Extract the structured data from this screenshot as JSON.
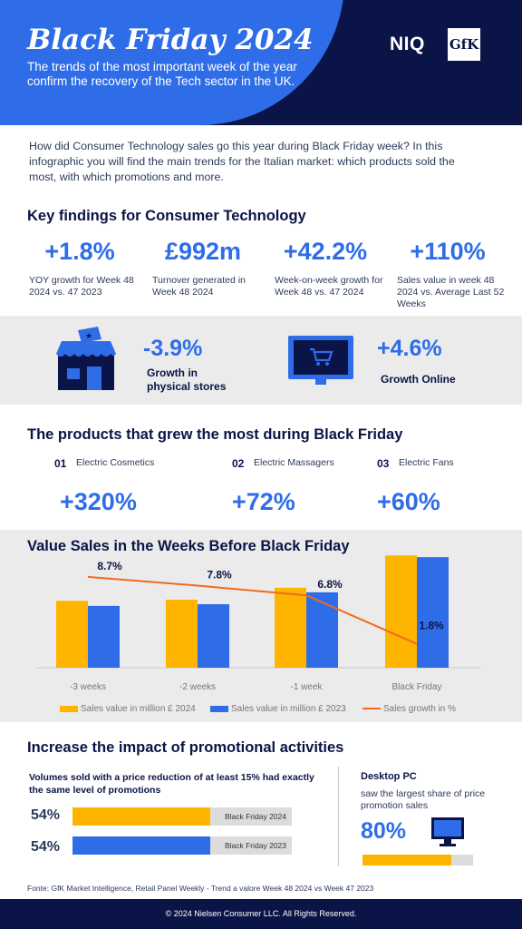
{
  "header": {
    "title": "Black Friday 2024",
    "subtitle": "The trends of the most important week of the year confirm the recovery of the Tech sector in the UK.",
    "logo_niq": "NIQ",
    "logo_gfk": "GfK"
  },
  "intro": "How did Consumer Technology sales go this year during Black Friday week? In this infographic you will find the main trends for the Italian market: which products sold the most, with which promotions and more.",
  "key_findings": {
    "title": "Key findings for Consumer Technology",
    "items": [
      {
        "value": "+1.8%",
        "desc": "YOY growth for Week 48 2024 vs. 47 2023"
      },
      {
        "value": "£992m",
        "desc": "Turnover generated in Week 48 2024"
      },
      {
        "value": "+42.2%",
        "desc": "Week-on-week growth for Week 48 vs. 47 2024"
      },
      {
        "value": "+110%",
        "desc": "Sales value in week 48 2024 vs. Average Last 52 Weeks"
      }
    ],
    "stores": {
      "value": "-3.9%",
      "label": "Growth in physical stores",
      "icon": "store-icon"
    },
    "online": {
      "value": "+4.6%",
      "label": "Growth Online",
      "icon": "monitor-cart-icon"
    }
  },
  "products": {
    "title": "The products that grew the most during Black Friday",
    "items": [
      {
        "num": "01",
        "name": "Electric Cosmetics",
        "value": "+320%"
      },
      {
        "num": "02",
        "name": "Electric Massagers",
        "value": "+72%"
      },
      {
        "num": "03",
        "name": "Electric Fans",
        "value": "+60%"
      }
    ]
  },
  "chart_data": {
    "type": "bar",
    "title": "Value Sales in the Weeks Before Black Friday",
    "categories": [
      "-3 weeks",
      "-2 weeks",
      "-1 week",
      "Black Friday"
    ],
    "series": [
      {
        "name": "Sales value in million £ 2024",
        "type": "bar",
        "color": "#ffb400",
        "values": [
          590,
          600,
          705,
          990
        ]
      },
      {
        "name": "Sales value in million £ 2023",
        "type": "bar",
        "color": "#2f6de8",
        "values": [
          545,
          560,
          665,
          975
        ]
      },
      {
        "name": "Sales growth in %",
        "type": "line",
        "color": "#f06a1e",
        "values": [
          8.7,
          7.8,
          6.8,
          1.8
        ],
        "labels": [
          "8.7%",
          "7.8%",
          "6.8%",
          "1.8%"
        ]
      }
    ],
    "grid": false,
    "legend": "bottom"
  },
  "promo": {
    "title": "Increase the impact of promotional activities",
    "subtitle": "Volumes sold with a price reduction of at least 15% had exactly the same level of promotions",
    "bars": [
      {
        "pct": "54%",
        "value": 0.54,
        "label": "Black Friday 2024",
        "color": "#ffb400"
      },
      {
        "pct": "54%",
        "value": 0.54,
        "label": "Black Friday 2023",
        "color": "#2f6de8"
      }
    ],
    "desktop": {
      "title": "Desktop PC",
      "desc": "saw the largest share of price promotion sales",
      "value": "80%",
      "fill": 0.8,
      "color": "#ffb400",
      "icon": "monitor-icon"
    }
  },
  "footnote": "Fonte: GfK Market Intelligence, Retail Panel Weekly - Trend a valore Week 48 2024 vs Week 47 2023",
  "footer": "© 2024 Nielsen Consumer LLC. All Rights Reserved."
}
